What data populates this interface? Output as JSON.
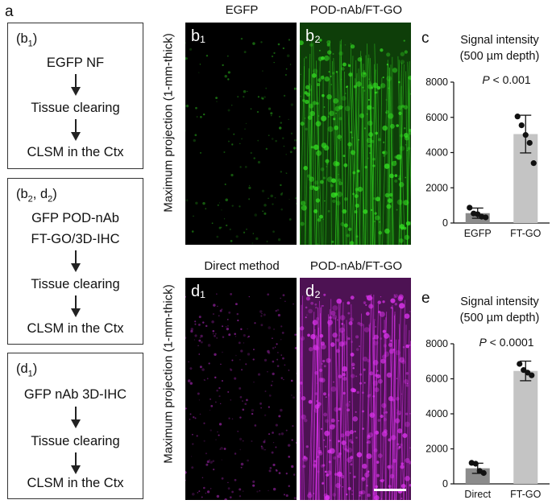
{
  "panel_labels": {
    "a": "a",
    "c": "c",
    "e": "e"
  },
  "flow_b1": {
    "header_main": "(b",
    "header_sub": "1",
    "header_end": ")",
    "steps": [
      "EGFP NF",
      "Tissue clearing",
      "CLSM in the Ctx"
    ]
  },
  "flow_b2d2": {
    "header_main": "(b",
    "header_sub1": "2",
    "header_mid": ", d",
    "header_sub2": "2",
    "header_end": ")",
    "steps": [
      "GFP POD-nAb",
      "FT-GO/3D-IHC",
      "Tissue clearing",
      "CLSM in the Ctx"
    ]
  },
  "flow_d1": {
    "header_main": "(d",
    "header_sub": "1",
    "header_end": ")",
    "steps": [
      "GFP nAb 3D-IHC",
      "Tissue clearing",
      "CLSM in the Ctx"
    ]
  },
  "images": {
    "y_label": "Maximum projection (1-mm-thick)",
    "top_left_title": "EGFP",
    "top_right_title": "POD-nAb/FT-GO",
    "bottom_left_title": "Direct method",
    "bottom_right_title": "POD-nAb/FT-GO",
    "b1": "b₁",
    "b2": "b₂",
    "d1": "d₁",
    "d2": "d₂",
    "green": "#33dd22",
    "magenta": "#dd33ee"
  },
  "chart_data": [
    {
      "type": "bar",
      "title": "Signal intensity (500 µm depth)",
      "title_line1": "Signal intensity",
      "title_line2": "(500 µm depth)",
      "annotation": "P < 0.001",
      "annotation_p": "P",
      "annotation_rest": " < 0.001",
      "categories": [
        "EGFP",
        "FT-GO"
      ],
      "values": [
        560,
        5050
      ],
      "errors": [
        290,
        1070
      ],
      "points": [
        [
          870,
          540,
          500,
          360,
          320
        ],
        [
          6050,
          5550,
          5000,
          4550,
          3400
        ]
      ],
      "ylim": [
        0,
        8000
      ],
      "yticks": [
        0,
        2000,
        4000,
        6000,
        8000
      ],
      "bar_colors": [
        "#8c8c8c",
        "#c4c4c4"
      ]
    },
    {
      "type": "bar",
      "title": "Signal intensity (500 µm depth)",
      "title_line1": "Signal intensity",
      "title_line2": "(500 µm depth)",
      "annotation": "P < 0.0001",
      "annotation_p": "P",
      "annotation_rest": " < 0.0001",
      "categories": [
        "Direct",
        "FT-GO"
      ],
      "values": [
        890,
        6450
      ],
      "errors": [
        290,
        560
      ],
      "points": [
        [
          1200,
          1150,
          740,
          620
        ],
        [
          6850,
          6500,
          6350,
          6200
        ]
      ],
      "ylim": [
        0,
        8000
      ],
      "yticks": [
        0,
        2000,
        4000,
        6000,
        8000
      ],
      "bar_colors": [
        "#8c8c8c",
        "#c4c4c4"
      ]
    }
  ]
}
